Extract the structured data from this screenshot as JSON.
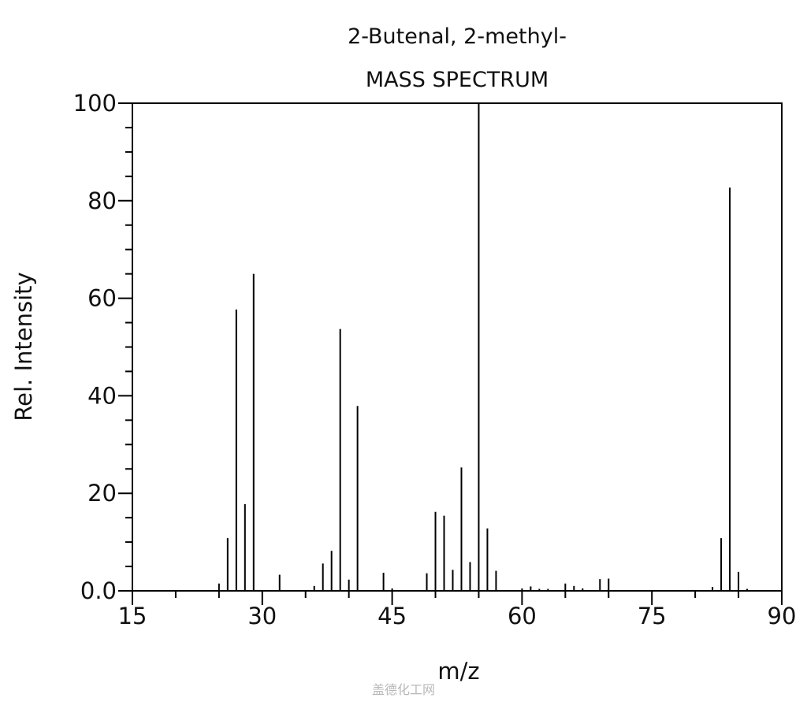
{
  "chart_data": {
    "type": "bar",
    "title": "2-Butenal, 2-methyl-",
    "subtitle": "MASS SPECTRUM",
    "xlabel": "m/z",
    "ylabel": "Rel. Intensity",
    "xlim": [
      15,
      90
    ],
    "ylim": [
      0,
      100
    ],
    "x_ticks": [
      "15",
      "30",
      "45",
      "60",
      "75",
      "90"
    ],
    "y_ticks": [
      "0.0",
      "20",
      "40",
      "60",
      "80",
      "100"
    ],
    "peaks": [
      {
        "mz": 25,
        "intensity": 1.5
      },
      {
        "mz": 26,
        "intensity": 10.8
      },
      {
        "mz": 27,
        "intensity": 57.7
      },
      {
        "mz": 28,
        "intensity": 17.8
      },
      {
        "mz": 29,
        "intensity": 65.0
      },
      {
        "mz": 32,
        "intensity": 3.3
      },
      {
        "mz": 36,
        "intensity": 1.0
      },
      {
        "mz": 37,
        "intensity": 5.6
      },
      {
        "mz": 38,
        "intensity": 8.2
      },
      {
        "mz": 39,
        "intensity": 53.7
      },
      {
        "mz": 40,
        "intensity": 2.3
      },
      {
        "mz": 41,
        "intensity": 37.9
      },
      {
        "mz": 44,
        "intensity": 3.7
      },
      {
        "mz": 45,
        "intensity": 0.5
      },
      {
        "mz": 49,
        "intensity": 3.6
      },
      {
        "mz": 50,
        "intensity": 16.2
      },
      {
        "mz": 51,
        "intensity": 15.4
      },
      {
        "mz": 52,
        "intensity": 4.3
      },
      {
        "mz": 53,
        "intensity": 25.3
      },
      {
        "mz": 54,
        "intensity": 5.9
      },
      {
        "mz": 55,
        "intensity": 100
      },
      {
        "mz": 56,
        "intensity": 12.8
      },
      {
        "mz": 57,
        "intensity": 4.1
      },
      {
        "mz": 60,
        "intensity": 0.5
      },
      {
        "mz": 61,
        "intensity": 0.9
      },
      {
        "mz": 62,
        "intensity": 0.4
      },
      {
        "mz": 63,
        "intensity": 0.4
      },
      {
        "mz": 65,
        "intensity": 1.5
      },
      {
        "mz": 66,
        "intensity": 1.0
      },
      {
        "mz": 67,
        "intensity": 0.5
      },
      {
        "mz": 69,
        "intensity": 2.4
      },
      {
        "mz": 70,
        "intensity": 2.5
      },
      {
        "mz": 82,
        "intensity": 0.8
      },
      {
        "mz": 83,
        "intensity": 10.8
      },
      {
        "mz": 84,
        "intensity": 82.7
      },
      {
        "mz": 85,
        "intensity": 3.9
      },
      {
        "mz": 86,
        "intensity": 0.4
      }
    ]
  },
  "watermark": "盖德化工网"
}
